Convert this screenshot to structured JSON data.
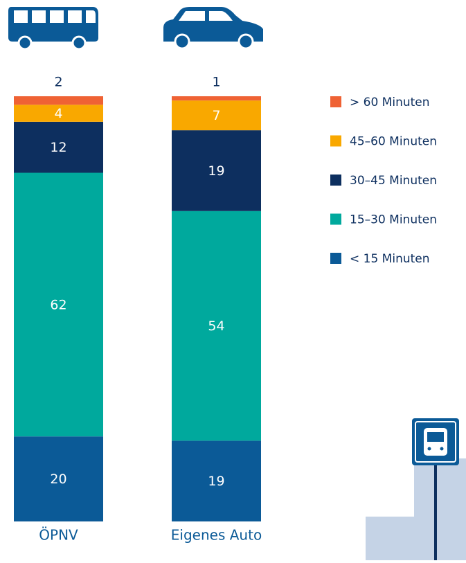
{
  "chart_data": {
    "type": "stacked-bar",
    "categories": [
      "ÖPNV",
      "Eigenes Auto"
    ],
    "series": [
      {
        "name": "< 15 Minuten",
        "color": "#0b5a97",
        "values": [
          20,
          19
        ]
      },
      {
        "name": "15–30 Minuten",
        "color": "#00a99d",
        "values": [
          62,
          54
        ]
      },
      {
        "name": "30–45 Minuten",
        "color": "#0d2f5f",
        "values": [
          12,
          19
        ]
      },
      {
        "name": "45–60 Minuten",
        "color": "#f9a800",
        "values": [
          4,
          7
        ]
      },
      {
        "name": "> 60 Minuten",
        "color": "#ef6234",
        "values": [
          2,
          1
        ]
      }
    ]
  }
}
